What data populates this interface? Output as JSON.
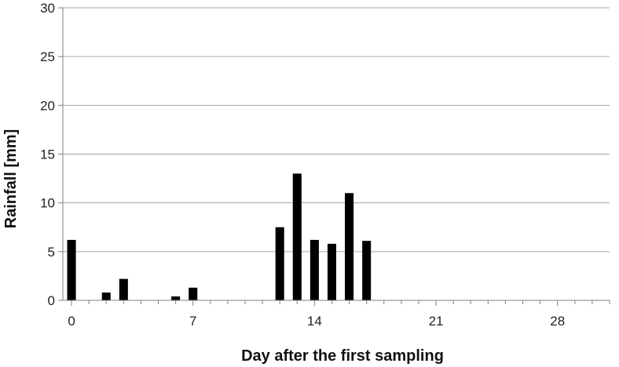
{
  "chart_data": {
    "type": "bar",
    "title": "",
    "xlabel": "Day after the first sampling",
    "ylabel": "Rainfall [mm]",
    "xlim": [
      -0.5,
      31
    ],
    "ylim": [
      0,
      30
    ],
    "y_ticks": [
      0,
      5,
      10,
      15,
      20,
      25,
      30
    ],
    "x_ticks": [
      0,
      7,
      14,
      21,
      28
    ],
    "grid": true,
    "bar_color": "#000000",
    "x": [
      0,
      2,
      3,
      6,
      7,
      12,
      13,
      14,
      15,
      16,
      17
    ],
    "values": [
      6.2,
      0.8,
      2.2,
      0.4,
      1.3,
      7.5,
      13.0,
      6.2,
      5.8,
      11.0,
      6.1
    ]
  }
}
